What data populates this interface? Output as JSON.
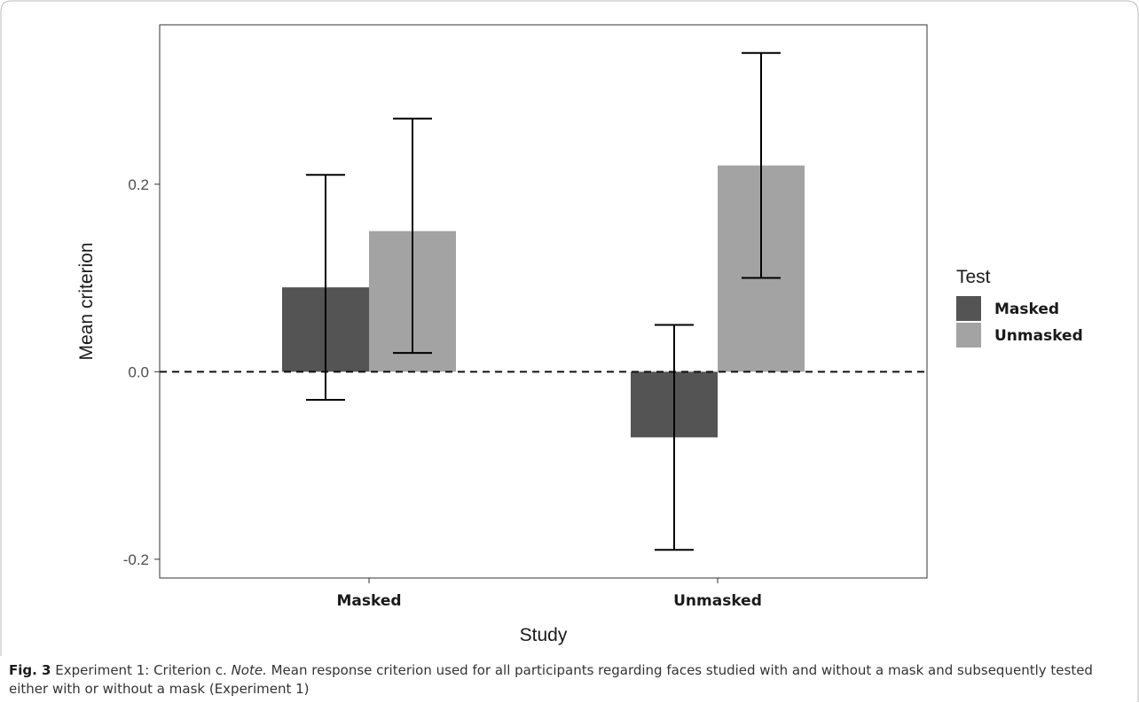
{
  "figure": {
    "caption_label": "Fig. 3",
    "caption_text_1": "Experiment 1: Criterion c. ",
    "caption_note": "Note.",
    "caption_text_2": " Mean response criterion used for all participants regarding faces studied with and without a mask and subsequently tested either with or without a mask (Experiment 1)"
  },
  "chart_data": {
    "type": "bar",
    "title": "",
    "xlabel": "Study",
    "ylabel": "Mean criterion",
    "categories": [
      "Masked",
      "Unmasked"
    ],
    "ylim": [
      -0.22,
      0.37
    ],
    "yticks": [
      -0.2,
      0.0,
      0.2
    ],
    "ytick_labels": [
      "-0.2",
      "0.0",
      "0.2"
    ],
    "reference_line": {
      "y": 0.0,
      "style": "dashed"
    },
    "legend": {
      "title": "Test",
      "placement": "right"
    },
    "series": [
      {
        "name": "Masked",
        "color": "#545454",
        "values": [
          0.09,
          -0.07
        ],
        "error_low": [
          -0.03,
          -0.19
        ],
        "error_high": [
          0.21,
          0.05
        ]
      },
      {
        "name": "Unmasked",
        "color": "#a3a3a3",
        "values": [
          0.15,
          0.22
        ],
        "error_low": [
          0.02,
          0.1
        ],
        "error_high": [
          0.27,
          0.34
        ]
      }
    ],
    "grid": false
  }
}
